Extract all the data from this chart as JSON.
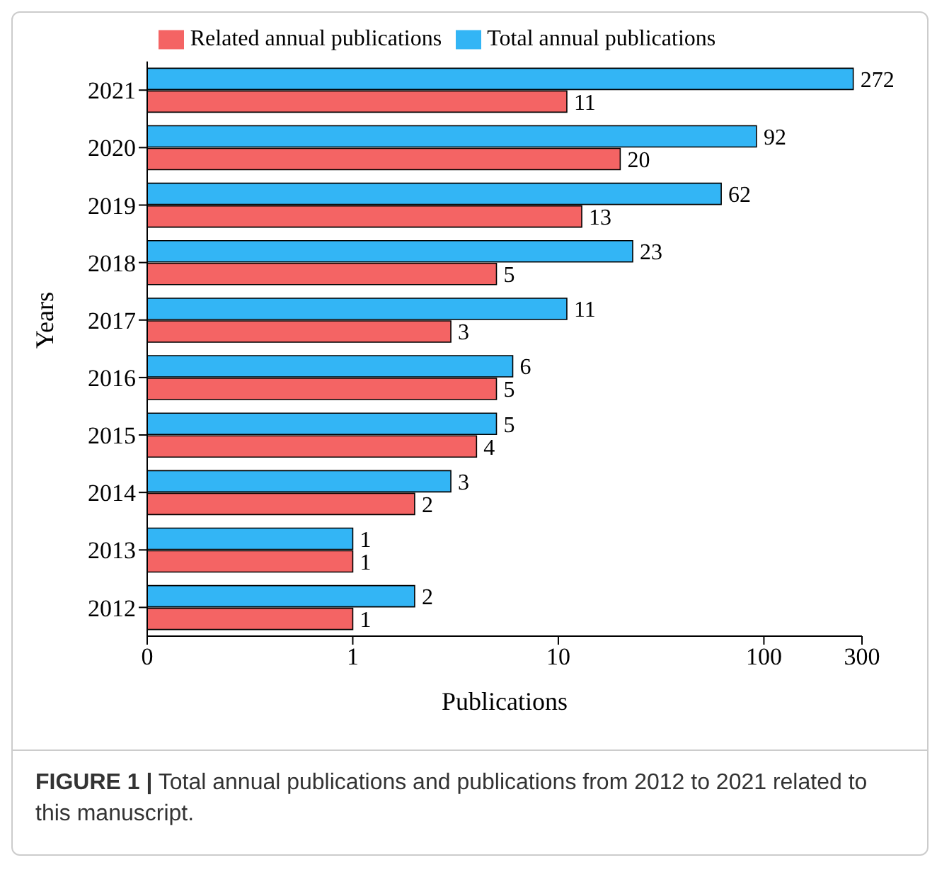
{
  "chart_data": {
    "type": "bar",
    "orientation": "horizontal",
    "xlabel": "Publications",
    "ylabel": "Years",
    "categories": [
      "2021",
      "2020",
      "2019",
      "2018",
      "2017",
      "2016",
      "2015",
      "2014",
      "2013",
      "2012"
    ],
    "series": [
      {
        "name": "Total annual publications",
        "color": "#33b5f5",
        "values": [
          272,
          92,
          62,
          23,
          11,
          6,
          5,
          3,
          1,
          2
        ]
      },
      {
        "name": "Related annual publications",
        "color": "#f46464",
        "values": [
          11,
          20,
          13,
          5,
          3,
          5,
          4,
          2,
          1,
          1
        ]
      }
    ],
    "log": "x",
    "xlim": [
      0.1,
      300
    ],
    "xticks": [
      {
        "value": 0.1,
        "label": "0"
      },
      1,
      10,
      100,
      300
    ],
    "data_labels": true,
    "legend": "top",
    "grid": false,
    "annotations": [
      "FIGURE 1 | Total annual publications and publications from 2012 to 2021 related to this manuscript."
    ]
  }
}
